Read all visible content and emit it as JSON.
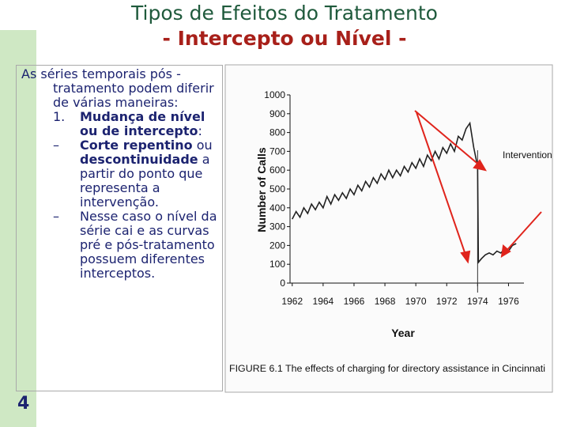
{
  "header": {
    "title_line1": "Tipos de Efeitos do Tratamento",
    "title_line2": "- Intercepto ou Nível -"
  },
  "body": {
    "intro": "As séries temporais pós -tratamento podem diferir de várias maneiras:",
    "items": [
      {
        "marker": "1.",
        "segments": [
          {
            "text": "Mudança de nível ou de intercepto",
            "bold": true
          },
          {
            "text": ":",
            "bold": false
          }
        ]
      },
      {
        "marker": "–",
        "segments": [
          {
            "text": "Corte repentino",
            "bold": true
          },
          {
            "text": " ou ",
            "bold": false
          },
          {
            "text": "descontinuidade",
            "bold": true
          },
          {
            "text": " a partir do ponto que representa a intervenção.",
            "bold": false
          }
        ]
      },
      {
        "marker": "–",
        "segments": [
          {
            "text": "Nesse caso o nível da série cai e as curvas pré e pós-tratamento possuem diferentes interceptos.",
            "bold": false
          }
        ]
      }
    ]
  },
  "slide_number": "4",
  "figure": {
    "type": "line",
    "ylabel": "Number of Calls",
    "xlabel": "Year",
    "annotation": "Intervention",
    "caption": "FIGURE 6.1 The effects of charging for directory assistance in Cincinnati",
    "ylim": [
      0,
      1000
    ],
    "yticks": [
      0,
      100,
      200,
      300,
      400,
      500,
      600,
      700,
      800,
      900,
      1000
    ],
    "xlim": [
      1961.5,
      1977
    ],
    "xticks": [
      1962,
      1964,
      1966,
      1968,
      1970,
      1972,
      1974,
      1976
    ],
    "intervention_x": 1974,
    "color": "#222222",
    "x": [
      1962,
      1962.25,
      1962.5,
      1962.75,
      1963,
      1963.25,
      1963.5,
      1963.75,
      1964,
      1964.25,
      1964.5,
      1964.75,
      1965,
      1965.25,
      1965.5,
      1965.75,
      1966,
      1966.25,
      1966.5,
      1966.75,
      1967,
      1967.25,
      1967.5,
      1967.75,
      1968,
      1968.25,
      1968.5,
      1968.75,
      1969,
      1969.25,
      1969.5,
      1969.75,
      1970,
      1970.25,
      1970.5,
      1970.75,
      1971,
      1971.25,
      1971.5,
      1971.75,
      1972,
      1972.25,
      1972.5,
      1972.75,
      1973,
      1973.25,
      1973.5,
      1973.75,
      1974,
      1974.05,
      1974.25,
      1974.5,
      1974.75,
      1975,
      1975.25,
      1975.5,
      1975.75,
      1976,
      1976.25,
      1976.5
    ],
    "values": [
      340,
      380,
      350,
      400,
      370,
      420,
      390,
      430,
      400,
      460,
      420,
      470,
      440,
      480,
      450,
      500,
      470,
      520,
      490,
      540,
      510,
      560,
      530,
      580,
      550,
      600,
      560,
      600,
      570,
      620,
      590,
      640,
      610,
      660,
      620,
      680,
      650,
      700,
      660,
      720,
      690,
      740,
      700,
      780,
      760,
      820,
      850,
      720,
      620,
      110,
      130,
      150,
      160,
      150,
      170,
      160,
      180,
      170,
      200,
      210
    ]
  }
}
